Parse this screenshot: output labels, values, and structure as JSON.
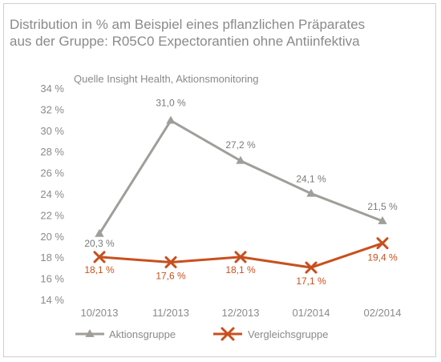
{
  "chart_data": {
    "type": "line",
    "title_lines": [
      "Distribution in % am Beispiel eines pflanzlichen Präparates",
      "aus der Gruppe: R05C0 Expectorantien ohne Antiinfektiva"
    ],
    "subtitle": "Quelle Insight Health, Aktionsmonitoring",
    "categories": [
      "10/2013",
      "11/2013",
      "12/2013",
      "01/2014",
      "02/2014"
    ],
    "y_ticks": [
      "14 %",
      "16 %",
      "18 %",
      "20 %",
      "22 %",
      "24 %",
      "26 %",
      "28 %",
      "30 %",
      "32 %",
      "34 %"
    ],
    "ylim": [
      14,
      34
    ],
    "grid": false,
    "legend_position": "bottom",
    "series": [
      {
        "name": "Aktionsgruppe",
        "marker": "triangle",
        "color": "#a09e99",
        "values": [
          20.3,
          31.0,
          27.2,
          24.1,
          21.5
        ],
        "labels": [
          "20,3 %",
          "31,0 %",
          "27,2 %",
          "24,1 %",
          "21,5 %"
        ]
      },
      {
        "name": "Vergleichsgruppe",
        "marker": "x",
        "color": "#c8501e",
        "values": [
          18.1,
          17.6,
          18.1,
          17.1,
          19.4
        ],
        "labels": [
          "18,1 %",
          "17,6 %",
          "18,1 %",
          "17,1 %",
          "19,4 %"
        ]
      }
    ]
  }
}
